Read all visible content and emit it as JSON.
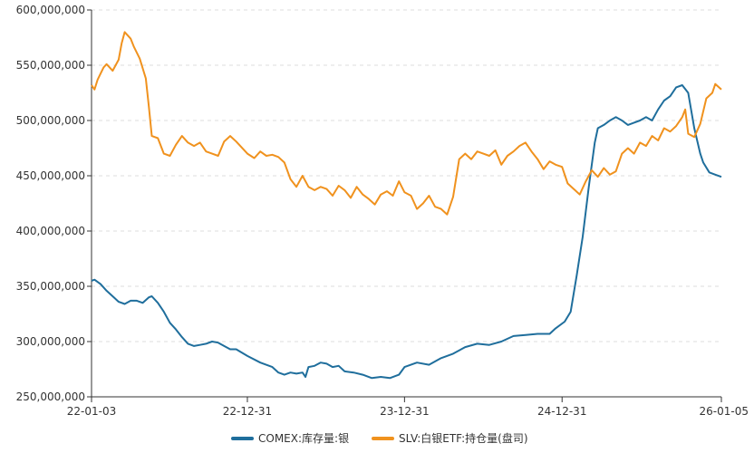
{
  "chart_data": {
    "type": "line",
    "title": "",
    "xlabel": "",
    "ylabel": "",
    "ylim": [
      250000000,
      600000000
    ],
    "y_ticks": [
      "250,000,000",
      "300,000,000",
      "350,000,000",
      "400,000,000",
      "450,000,000",
      "500,000,000",
      "550,000,000",
      "600,000,000"
    ],
    "y_tick_values": [
      250000000,
      300000000,
      350000000,
      400000000,
      450000000,
      500000000,
      550000000,
      600000000
    ],
    "x_range": [
      "2022-01-03",
      "2026-01-05"
    ],
    "x_ticks": [
      {
        "date": "2022-01-03",
        "label": "22-01-03"
      },
      {
        "date": "2022-12-31",
        "label": "22-12-31"
      },
      {
        "date": "2023-12-31",
        "label": "23-12-31"
      },
      {
        "date": "2024-12-31",
        "label": "24-12-31"
      },
      {
        "date": "2026-01-05",
        "label": "26-01-05"
      }
    ],
    "grid": "horizontal-dashed",
    "legend_position": "bottom-center",
    "series": [
      {
        "name": "COMEX:库存量:银",
        "color": "#1f6e9c",
        "points": [
          [
            "2022-01-03",
            355000000
          ],
          [
            "2022-01-10",
            356000000
          ],
          [
            "2022-01-24",
            352000000
          ],
          [
            "2022-02-07",
            346000000
          ],
          [
            "2022-02-21",
            341000000
          ],
          [
            "2022-03-07",
            336000000
          ],
          [
            "2022-03-21",
            334000000
          ],
          [
            "2022-04-04",
            337000000
          ],
          [
            "2022-04-18",
            337000000
          ],
          [
            "2022-05-02",
            335000000
          ],
          [
            "2022-05-16",
            340000000
          ],
          [
            "2022-05-23",
            341000000
          ],
          [
            "2022-06-06",
            335000000
          ],
          [
            "2022-06-20",
            327000000
          ],
          [
            "2022-07-04",
            317000000
          ],
          [
            "2022-07-18",
            311000000
          ],
          [
            "2022-08-01",
            304000000
          ],
          [
            "2022-08-15",
            298000000
          ],
          [
            "2022-08-29",
            296000000
          ],
          [
            "2022-09-12",
            297000000
          ],
          [
            "2022-09-26",
            298000000
          ],
          [
            "2022-10-10",
            300000000
          ],
          [
            "2022-10-24",
            299000000
          ],
          [
            "2022-11-07",
            296000000
          ],
          [
            "2022-11-21",
            293000000
          ],
          [
            "2022-12-05",
            293000000
          ],
          [
            "2022-12-31",
            287000000
          ],
          [
            "2023-01-30",
            281000000
          ],
          [
            "2023-02-27",
            277000000
          ],
          [
            "2023-03-13",
            272000000
          ],
          [
            "2023-03-27",
            270000000
          ],
          [
            "2023-04-10",
            272000000
          ],
          [
            "2023-04-24",
            271000000
          ],
          [
            "2023-05-08",
            272000000
          ],
          [
            "2023-05-15",
            268000000
          ],
          [
            "2023-05-22",
            277000000
          ],
          [
            "2023-06-05",
            278000000
          ],
          [
            "2023-06-19",
            281000000
          ],
          [
            "2023-07-03",
            280000000
          ],
          [
            "2023-07-17",
            277000000
          ],
          [
            "2023-07-31",
            278000000
          ],
          [
            "2023-08-14",
            273000000
          ],
          [
            "2023-09-04",
            272000000
          ],
          [
            "2023-09-25",
            270000000
          ],
          [
            "2023-10-16",
            267000000
          ],
          [
            "2023-11-06",
            268000000
          ],
          [
            "2023-11-27",
            267000000
          ],
          [
            "2023-12-18",
            270000000
          ],
          [
            "2023-12-31",
            277000000
          ],
          [
            "2024-01-29",
            281000000
          ],
          [
            "2024-02-26",
            279000000
          ],
          [
            "2024-03-25",
            285000000
          ],
          [
            "2024-04-22",
            289000000
          ],
          [
            "2024-05-20",
            295000000
          ],
          [
            "2024-06-17",
            298000000
          ],
          [
            "2024-07-15",
            297000000
          ],
          [
            "2024-08-12",
            300000000
          ],
          [
            "2024-09-09",
            305000000
          ],
          [
            "2024-10-07",
            306000000
          ],
          [
            "2024-11-04",
            307000000
          ],
          [
            "2024-12-02",
            307000000
          ],
          [
            "2024-12-16",
            312000000
          ],
          [
            "2025-01-06",
            318000000
          ],
          [
            "2025-01-20",
            327000000
          ],
          [
            "2025-02-03",
            360000000
          ],
          [
            "2025-02-17",
            395000000
          ],
          [
            "2025-03-03",
            440000000
          ],
          [
            "2025-03-10",
            460000000
          ],
          [
            "2025-03-17",
            480000000
          ],
          [
            "2025-03-24",
            493000000
          ],
          [
            "2025-04-07",
            496000000
          ],
          [
            "2025-04-21",
            500000000
          ],
          [
            "2025-05-05",
            503000000
          ],
          [
            "2025-05-19",
            500000000
          ],
          [
            "2025-06-02",
            496000000
          ],
          [
            "2025-06-16",
            498000000
          ],
          [
            "2025-06-30",
            500000000
          ],
          [
            "2025-07-14",
            503000000
          ],
          [
            "2025-07-28",
            500000000
          ],
          [
            "2025-08-11",
            510000000
          ],
          [
            "2025-08-25",
            518000000
          ],
          [
            "2025-09-08",
            522000000
          ],
          [
            "2025-09-22",
            530000000
          ],
          [
            "2025-10-06",
            532000000
          ],
          [
            "2025-10-20",
            525000000
          ],
          [
            "2025-11-03",
            493000000
          ],
          [
            "2025-11-17",
            470000000
          ],
          [
            "2025-11-24",
            462000000
          ],
          [
            "2025-12-08",
            453000000
          ],
          [
            "2025-12-22",
            451000000
          ],
          [
            "2026-01-05",
            449000000
          ]
        ]
      },
      {
        "name": "SLV:白银ETF:持仓量(盘司)",
        "color": "#f0921e",
        "points": [
          [
            "2022-01-03",
            532000000
          ],
          [
            "2022-01-10",
            528000000
          ],
          [
            "2022-01-17",
            537000000
          ],
          [
            "2022-01-31",
            548000000
          ],
          [
            "2022-02-07",
            551000000
          ],
          [
            "2022-02-21",
            545000000
          ],
          [
            "2022-03-07",
            555000000
          ],
          [
            "2022-03-14",
            570000000
          ],
          [
            "2022-03-21",
            580000000
          ],
          [
            "2022-04-04",
            574000000
          ],
          [
            "2022-04-11",
            567000000
          ],
          [
            "2022-04-25",
            556000000
          ],
          [
            "2022-05-09",
            538000000
          ],
          [
            "2022-05-16",
            513000000
          ],
          [
            "2022-05-23",
            486000000
          ],
          [
            "2022-06-06",
            484000000
          ],
          [
            "2022-06-20",
            470000000
          ],
          [
            "2022-07-04",
            468000000
          ],
          [
            "2022-07-18",
            478000000
          ],
          [
            "2022-08-01",
            486000000
          ],
          [
            "2022-08-15",
            480000000
          ],
          [
            "2022-08-29",
            477000000
          ],
          [
            "2022-09-12",
            480000000
          ],
          [
            "2022-09-26",
            472000000
          ],
          [
            "2022-10-10",
            470000000
          ],
          [
            "2022-10-24",
            468000000
          ],
          [
            "2022-11-07",
            481000000
          ],
          [
            "2022-11-21",
            486000000
          ],
          [
            "2022-12-05",
            481000000
          ],
          [
            "2022-12-31",
            470000000
          ],
          [
            "2023-01-16",
            466000000
          ],
          [
            "2023-01-30",
            472000000
          ],
          [
            "2023-02-13",
            468000000
          ],
          [
            "2023-02-27",
            469000000
          ],
          [
            "2023-03-13",
            467000000
          ],
          [
            "2023-03-27",
            462000000
          ],
          [
            "2023-04-10",
            447000000
          ],
          [
            "2023-04-24",
            440000000
          ],
          [
            "2023-05-08",
            450000000
          ],
          [
            "2023-05-22",
            440000000
          ],
          [
            "2023-06-05",
            437000000
          ],
          [
            "2023-06-19",
            440000000
          ],
          [
            "2023-07-03",
            438000000
          ],
          [
            "2023-07-17",
            432000000
          ],
          [
            "2023-07-31",
            441000000
          ],
          [
            "2023-08-14",
            437000000
          ],
          [
            "2023-08-28",
            430000000
          ],
          [
            "2023-09-11",
            440000000
          ],
          [
            "2023-09-25",
            433000000
          ],
          [
            "2023-10-09",
            429000000
          ],
          [
            "2023-10-23",
            424000000
          ],
          [
            "2023-11-06",
            433000000
          ],
          [
            "2023-11-20",
            436000000
          ],
          [
            "2023-12-04",
            432000000
          ],
          [
            "2023-12-18",
            445000000
          ],
          [
            "2023-12-31",
            435000000
          ],
          [
            "2024-01-15",
            432000000
          ],
          [
            "2024-01-29",
            420000000
          ],
          [
            "2024-02-12",
            425000000
          ],
          [
            "2024-02-26",
            432000000
          ],
          [
            "2024-03-11",
            422000000
          ],
          [
            "2024-03-25",
            420000000
          ],
          [
            "2024-04-08",
            415000000
          ],
          [
            "2024-04-22",
            431000000
          ],
          [
            "2024-05-06",
            465000000
          ],
          [
            "2024-05-20",
            470000000
          ],
          [
            "2024-06-03",
            465000000
          ],
          [
            "2024-06-17",
            472000000
          ],
          [
            "2024-07-01",
            470000000
          ],
          [
            "2024-07-15",
            468000000
          ],
          [
            "2024-07-29",
            473000000
          ],
          [
            "2024-08-12",
            460000000
          ],
          [
            "2024-08-26",
            468000000
          ],
          [
            "2024-09-09",
            472000000
          ],
          [
            "2024-09-23",
            477000000
          ],
          [
            "2024-10-07",
            480000000
          ],
          [
            "2024-10-21",
            472000000
          ],
          [
            "2024-11-04",
            465000000
          ],
          [
            "2024-11-18",
            456000000
          ],
          [
            "2024-12-02",
            463000000
          ],
          [
            "2024-12-16",
            460000000
          ],
          [
            "2024-12-31",
            458000000
          ],
          [
            "2025-01-13",
            443000000
          ],
          [
            "2025-01-27",
            438000000
          ],
          [
            "2025-02-10",
            433000000
          ],
          [
            "2025-02-24",
            445000000
          ],
          [
            "2025-03-10",
            455000000
          ],
          [
            "2025-03-24",
            449000000
          ],
          [
            "2025-04-07",
            457000000
          ],
          [
            "2025-04-21",
            451000000
          ],
          [
            "2025-05-05",
            454000000
          ],
          [
            "2025-05-19",
            470000000
          ],
          [
            "2025-06-02",
            475000000
          ],
          [
            "2025-06-16",
            470000000
          ],
          [
            "2025-06-30",
            480000000
          ],
          [
            "2025-07-14",
            477000000
          ],
          [
            "2025-07-28",
            486000000
          ],
          [
            "2025-08-11",
            482000000
          ],
          [
            "2025-08-25",
            493000000
          ],
          [
            "2025-09-08",
            490000000
          ],
          [
            "2025-09-22",
            495000000
          ],
          [
            "2025-10-06",
            503000000
          ],
          [
            "2025-10-13",
            510000000
          ],
          [
            "2025-10-20",
            488000000
          ],
          [
            "2025-11-03",
            485000000
          ],
          [
            "2025-11-17",
            497000000
          ],
          [
            "2025-12-01",
            520000000
          ],
          [
            "2025-12-15",
            525000000
          ],
          [
            "2025-12-22",
            533000000
          ],
          [
            "2026-01-05",
            528000000
          ]
        ]
      }
    ]
  }
}
